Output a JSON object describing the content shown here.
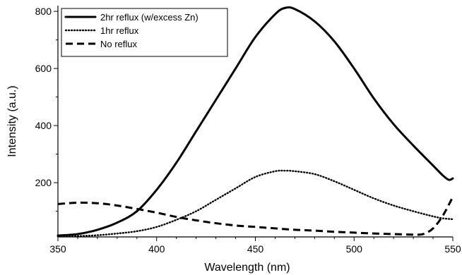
{
  "chart_data": {
    "type": "line",
    "title": "",
    "xlabel": "Wavelength (nm)",
    "ylabel": "Intensity (a.u.)",
    "xlim": [
      350,
      550
    ],
    "ylim": [
      10,
      820
    ],
    "grid": false,
    "legend_position": "top-left",
    "x_ticks": [
      "350",
      "400",
      "450",
      "500",
      "550"
    ],
    "y_ticks": [
      "200",
      "400",
      "600",
      "800"
    ],
    "series": [
      {
        "name": "2hr reflux (w/excess Zn)",
        "style": "solid",
        "x": [
          350,
          360,
          370,
          380,
          390,
          400,
          410,
          420,
          430,
          440,
          450,
          460,
          465,
          470,
          480,
          490,
          500,
          510,
          520,
          530,
          540,
          545,
          548,
          550
        ],
        "y": [
          15,
          20,
          35,
          60,
          100,
          175,
          270,
          380,
          490,
          600,
          710,
          790,
          812,
          808,
          765,
          695,
          600,
          495,
          405,
          330,
          260,
          225,
          210,
          215
        ]
      },
      {
        "name": "1hr reflux",
        "style": "dotted",
        "x": [
          350,
          360,
          370,
          380,
          390,
          400,
          410,
          420,
          430,
          440,
          450,
          460,
          465,
          470,
          480,
          490,
          500,
          510,
          520,
          530,
          540,
          545,
          550
        ],
        "y": [
          12,
          13,
          16,
          22,
          30,
          45,
          70,
          100,
          140,
          180,
          220,
          240,
          242,
          240,
          230,
          205,
          175,
          145,
          120,
          100,
          82,
          75,
          72
        ]
      },
      {
        "name": "No reflux",
        "style": "dashed",
        "x": [
          350,
          360,
          370,
          380,
          390,
          400,
          410,
          420,
          430,
          440,
          450,
          460,
          470,
          480,
          490,
          500,
          510,
          520,
          530,
          535,
          540,
          545,
          550
        ],
        "y": [
          125,
          130,
          128,
          120,
          108,
          95,
          80,
          68,
          58,
          50,
          45,
          40,
          35,
          32,
          28,
          25,
          22,
          20,
          18,
          20,
          40,
          85,
          150
        ]
      }
    ]
  }
}
